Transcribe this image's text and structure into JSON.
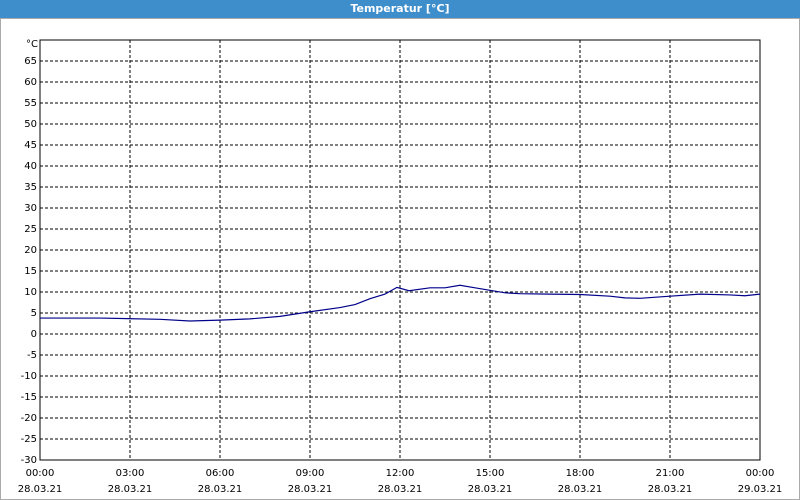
{
  "chart_data": {
    "type": "line",
    "title": "Temperatur [°C]",
    "y_unit": "°C",
    "x": [
      0,
      2,
      4,
      5,
      6,
      7,
      8,
      9,
      10,
      10.5,
      11,
      11.5,
      11.9,
      12.3,
      13,
      13.5,
      14,
      14.5,
      15,
      15.5,
      16,
      17,
      18,
      19,
      19.5,
      20,
      21,
      22,
      23,
      23.5,
      24
    ],
    "series": [
      {
        "name": "Temperatur",
        "color": "#00008b",
        "values": [
          3.8,
          3.8,
          3.5,
          3.1,
          3.3,
          3.6,
          4.2,
          5.3,
          6.3,
          7.0,
          8.4,
          9.5,
          11.1,
          10.3,
          11.0,
          11.0,
          11.6,
          11.0,
          10.4,
          9.8,
          9.6,
          9.5,
          9.4,
          9.0,
          8.6,
          8.5,
          9.0,
          9.5,
          9.3,
          9.1,
          9.5
        ]
      }
    ],
    "xlim": [
      0,
      24
    ],
    "xticks": [
      {
        "value": 0,
        "label": "00:00"
      },
      {
        "value": 3,
        "label": "03:00"
      },
      {
        "value": 6,
        "label": "06:00"
      },
      {
        "value": 9,
        "label": "09:00"
      },
      {
        "value": 12,
        "label": "12:00"
      },
      {
        "value": 15,
        "label": "15:00"
      },
      {
        "value": 18,
        "label": "18:00"
      },
      {
        "value": 21,
        "label": "21:00"
      },
      {
        "value": 24,
        "label": "00:00"
      }
    ],
    "xtick_dates": [
      "28.03.21",
      "28.03.21",
      "28.03.21",
      "28.03.21",
      "28.03.21",
      "28.03.21",
      "28.03.21",
      "28.03.21",
      "29.03.21"
    ],
    "ylim": [
      -30,
      70
    ],
    "yticks": [
      -30,
      -25,
      -20,
      -15,
      -10,
      -5,
      0,
      5,
      10,
      15,
      20,
      25,
      30,
      35,
      40,
      45,
      50,
      55,
      60,
      65
    ],
    "grid": true
  }
}
